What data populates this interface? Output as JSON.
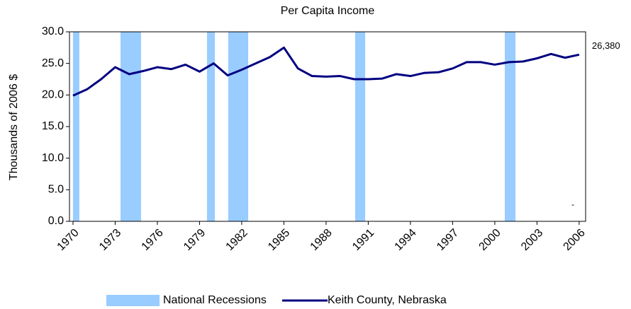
{
  "chart_data": {
    "type": "line",
    "title": "Per Capita Income",
    "y_label": "Thousands of 2006 $",
    "x": [
      1970,
      1971,
      1972,
      1973,
      1974,
      1975,
      1976,
      1977,
      1978,
      1979,
      1980,
      1981,
      1982,
      1983,
      1984,
      1985,
      1986,
      1987,
      1988,
      1989,
      1990,
      1991,
      1992,
      1993,
      1994,
      1995,
      1996,
      1997,
      1998,
      1999,
      2000,
      2001,
      2002,
      2003,
      2004,
      2005,
      2006
    ],
    "series": [
      {
        "name": "Keith County, Nebraska",
        "color": "#000080",
        "values": [
          19.9,
          20.9,
          22.5,
          24.4,
          23.3,
          23.8,
          24.4,
          24.1,
          24.8,
          23.7,
          25.0,
          23.1,
          24.0,
          25.0,
          26.0,
          27.5,
          24.2,
          23.0,
          22.9,
          23.0,
          22.5,
          22.5,
          22.6,
          23.3,
          23.0,
          23.5,
          23.6,
          24.2,
          25.2,
          25.2,
          24.8,
          25.2,
          25.3,
          25.8,
          26.5,
          25.9,
          26.38
        ],
        "value_labels": [
          null,
          null,
          null,
          null,
          null,
          null,
          null,
          null,
          null,
          null,
          null,
          null,
          null,
          null,
          null,
          null,
          null,
          null,
          null,
          null,
          null,
          null,
          null,
          null,
          null,
          null,
          null,
          null,
          null,
          null,
          null,
          null,
          null,
          null,
          null,
          null,
          "26,380"
        ]
      }
    ],
    "recessions": {
      "name": "National Recessions",
      "color": "#99ccff",
      "ranges": [
        [
          1970.0,
          1970.45
        ],
        [
          1973.38,
          1974.84
        ],
        [
          1979.53,
          1980.09
        ],
        [
          1981.04,
          1982.46
        ],
        [
          1990.07,
          1990.78
        ],
        [
          2000.71,
          2001.47
        ]
      ]
    },
    "annotation": "-",
    "xlim": [
      1969.75,
      2006.46
    ],
    "xticks": [
      1970,
      1973,
      1976,
      1979,
      1982,
      1985,
      1988,
      1991,
      1994,
      1997,
      2000,
      2003,
      2006
    ],
    "ylim": [
      0,
      30
    ],
    "yticks": [
      {
        "value": 0,
        "label": "0.0"
      },
      {
        "value": 5,
        "label": "5.0"
      },
      {
        "value": 10,
        "label": "10.0"
      },
      {
        "value": 15,
        "label": "15.0"
      },
      {
        "value": 20,
        "label": "20.0"
      },
      {
        "value": 25,
        "label": "25.0"
      },
      {
        "value": 30,
        "label": "30.0"
      }
    ],
    "legend": "bottom"
  }
}
